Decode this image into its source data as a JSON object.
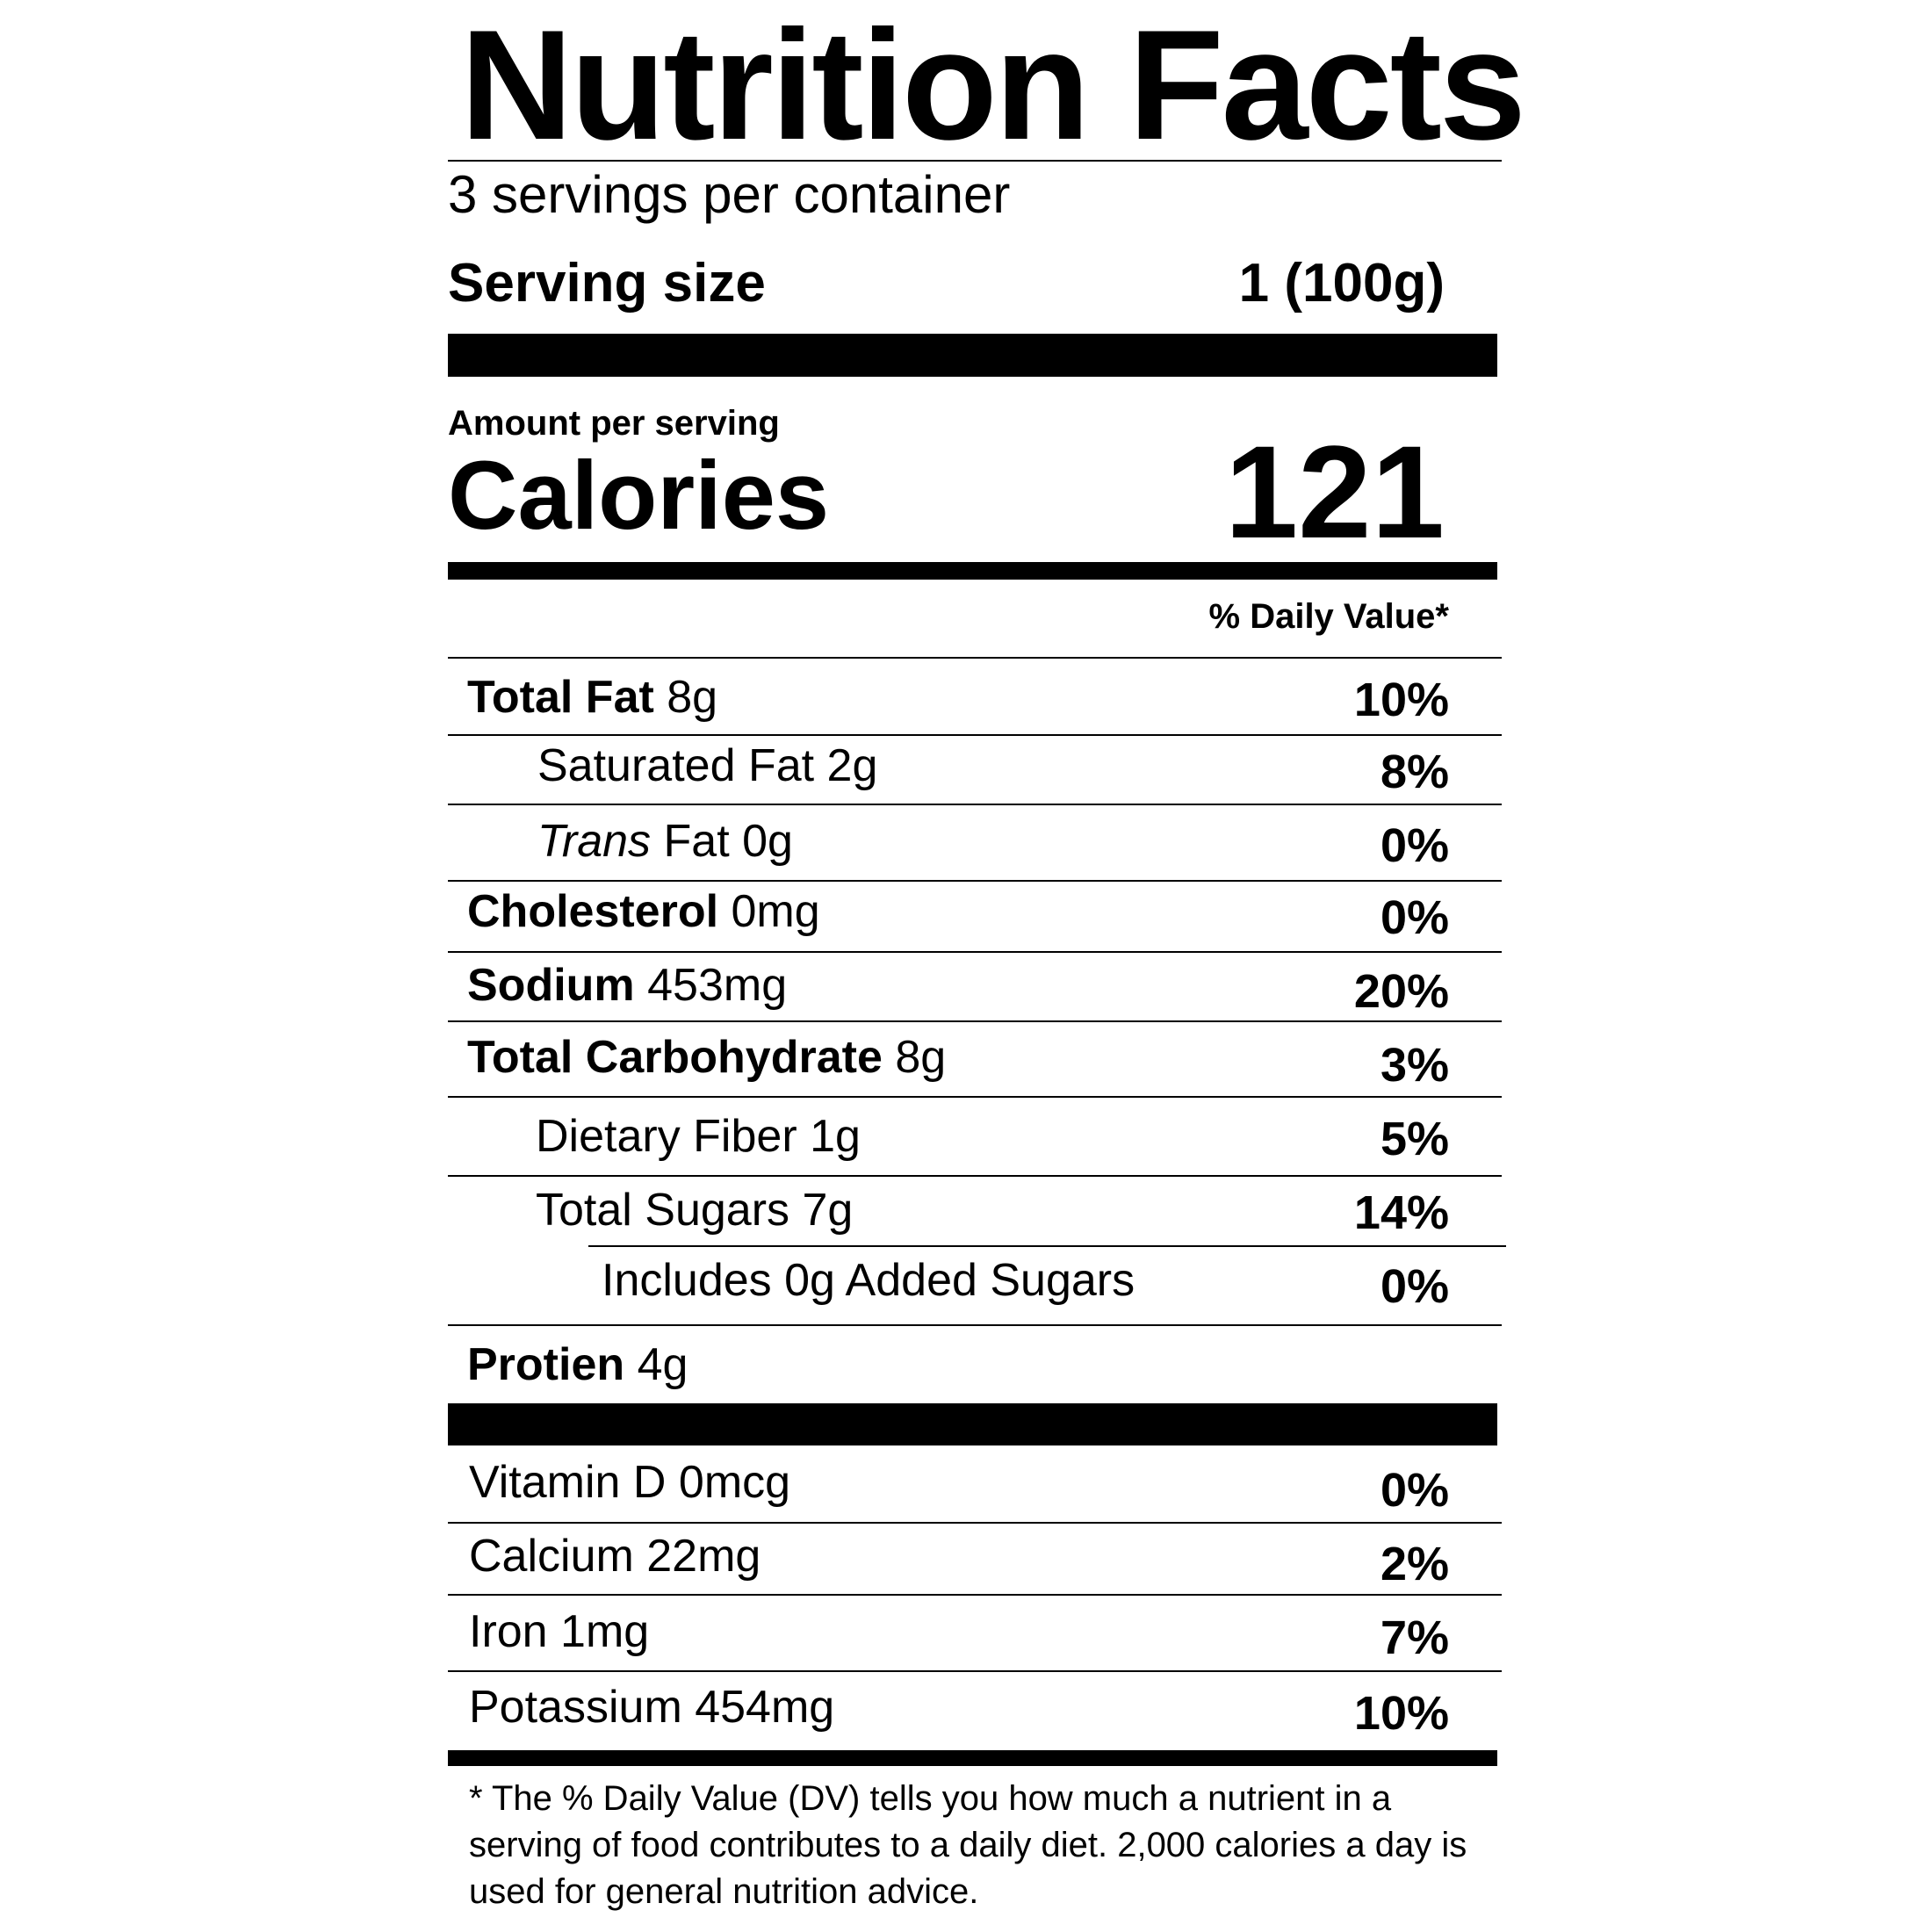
{
  "title": "Nutrition Facts",
  "servings_per_container": "3 servings per container",
  "serving_size": {
    "label": "Serving size",
    "value": "1 (100g)"
  },
  "amount_per_serving": "Amount per serving",
  "calories": {
    "label": "Calories",
    "value": "121"
  },
  "daily_value_header": "% Daily Value*",
  "nutrients": {
    "total_fat": {
      "name": "Total Fat",
      "amount": "8g",
      "dv": "10%"
    },
    "saturated_fat": {
      "name": "Saturated Fat 2g",
      "dv": "8%"
    },
    "trans_fat": {
      "name_italic": "Trans",
      "name_rest": " Fat 0g",
      "dv": "0%"
    },
    "cholesterol": {
      "name": "Cholesterol",
      "amount": "0mg",
      "dv": "0%"
    },
    "sodium": {
      "name": "Sodium",
      "amount": "453mg",
      "dv": "20%"
    },
    "total_carbohydrate": {
      "name": "Total Carbohydrate",
      "amount": "8g",
      "dv": "3%"
    },
    "dietary_fiber": {
      "name": "Dietary Fiber 1g",
      "dv": "5%"
    },
    "total_sugars": {
      "name": "Total Sugars 7g",
      "dv": "14%"
    },
    "added_sugars": {
      "name": "Includes 0g Added Sugars",
      "dv": "0%"
    },
    "protein": {
      "name": "Protien",
      "amount": "4g"
    }
  },
  "vitamins": {
    "vitamin_d": {
      "name": "Vitamin D 0mcg",
      "dv": "0%"
    },
    "calcium": {
      "name": "Calcium 22mg",
      "dv": "2%"
    },
    "iron": {
      "name": "Iron 1mg",
      "dv": "7%"
    },
    "potassium": {
      "name": "Potassium 454mg",
      "dv": "10%"
    }
  },
  "footnote": "* The % Daily Value (DV) tells you how much a nutrient in a serving of food contributes to a daily diet. 2,000 calories a day is used for general nutrition advice."
}
